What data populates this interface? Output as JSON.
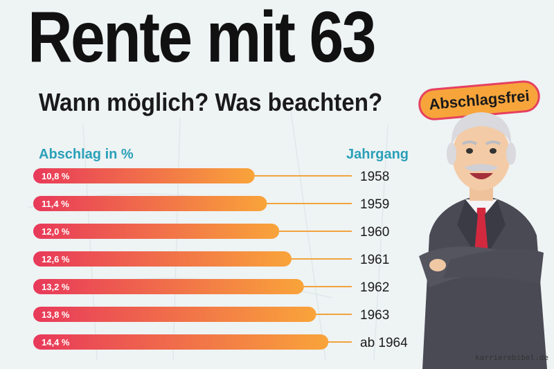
{
  "header": {
    "title": "Rente mit 63",
    "subtitle": "Wann möglich? Was beachten?",
    "badge": "Abschlagsfrei"
  },
  "chart_data": {
    "type": "bar",
    "orientation": "horizontal",
    "xlabel": "Abschlag in %",
    "ylabel": "Jahrgang",
    "categories": [
      "1958",
      "1959",
      "1960",
      "1961",
      "1962",
      "1963",
      "ab 1964"
    ],
    "values": [
      10.8,
      11.4,
      12.0,
      12.6,
      13.2,
      13.8,
      14.4
    ],
    "value_labels": [
      "10,8 %",
      "11,4 %",
      "12,0 %",
      "12,6 %",
      "13,2 %",
      "13,8 %",
      "14,4 %"
    ],
    "grid": false,
    "legend": "none"
  },
  "footer": {
    "source": "karrierebibel.de"
  },
  "colors": {
    "bar_start": "#e8395a",
    "bar_end": "#f9a43a",
    "connector": "#f2a33c",
    "accent_label": "#2aa0b8"
  },
  "icons": {
    "illustration": "businessman-icon"
  }
}
